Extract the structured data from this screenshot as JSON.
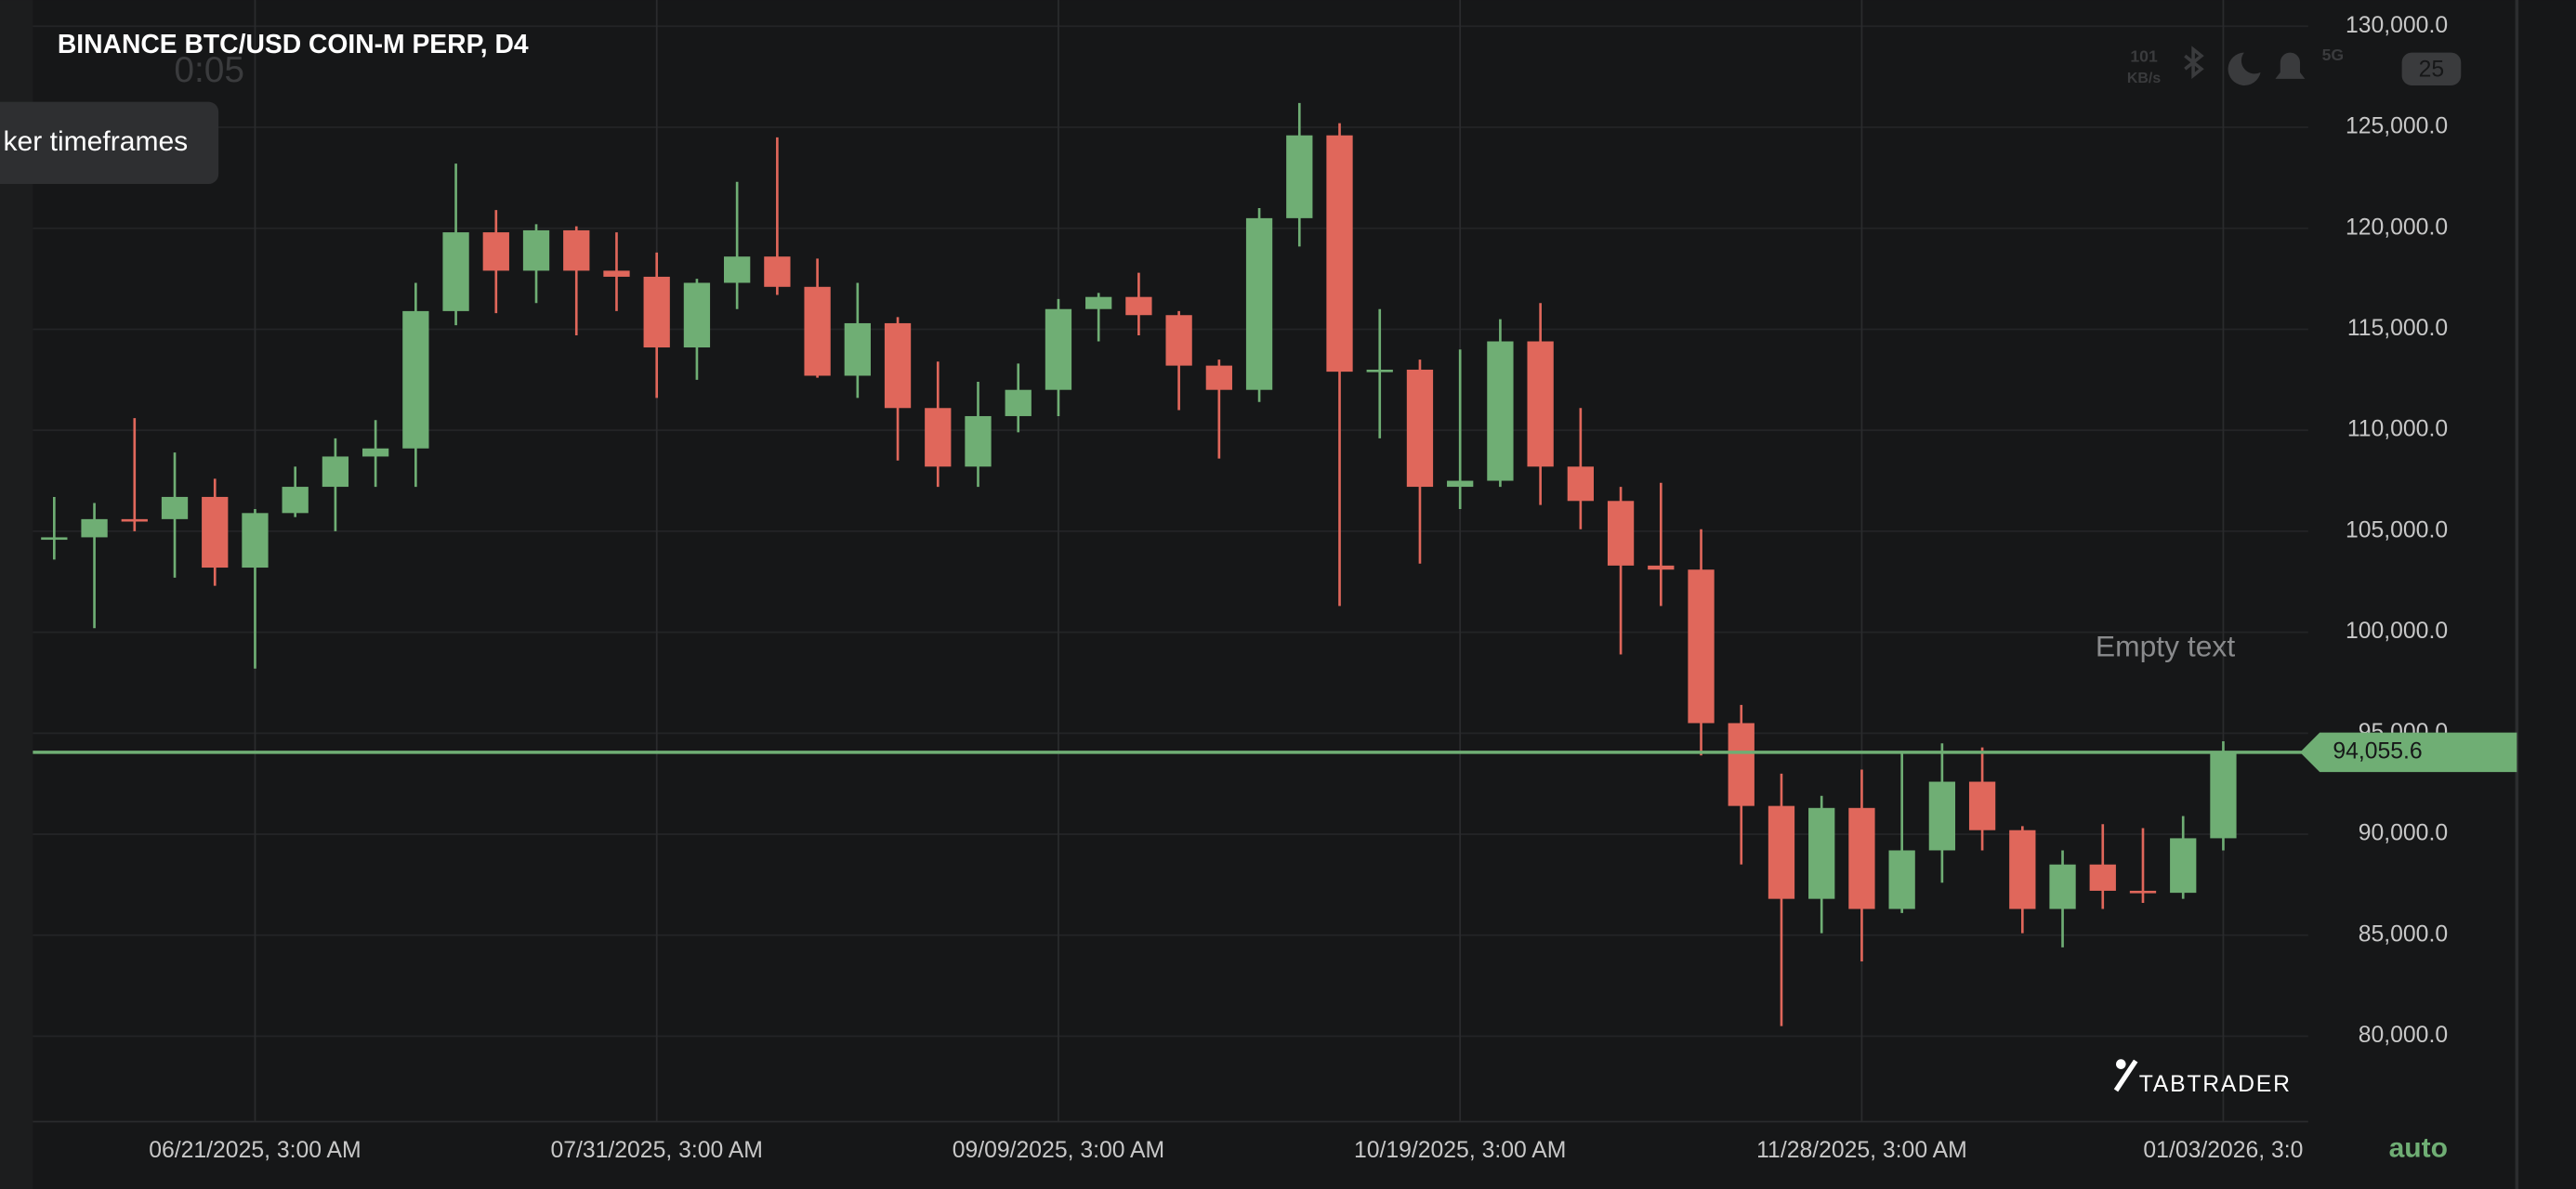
{
  "chart_data": {
    "type": "candlestick",
    "title": "BINANCE  BTC/USD COIN-M PERP, D4",
    "overlay_time": "0:05",
    "tooltip": "ker timeframes",
    "annotation": "Empty text",
    "scale_mode": "auto",
    "logo": "TABTRADER",
    "status_bar": {
      "speed": "101",
      "speed_unit": "KB/s",
      "network": "5G",
      "battery": "25"
    },
    "categories": [
      null,
      null,
      null,
      null,
      null,
      "06/21/2025, 3:00 AM",
      null,
      null,
      null,
      null,
      null,
      null,
      null,
      null,
      null,
      "07/31/2025, 3:00 AM",
      null,
      null,
      null,
      null,
      null,
      null,
      null,
      null,
      null,
      "09/09/2025, 3:00 AM",
      null,
      null,
      null,
      null,
      null,
      null,
      null,
      null,
      null,
      "10/19/2025, 3:00 AM",
      null,
      null,
      null,
      null,
      null,
      null,
      null,
      null,
      null,
      "11/28/2025, 3:00 AM",
      null,
      null,
      null,
      null,
      null,
      null,
      null,
      null,
      "01/03/2026, 3:0"
    ],
    "open": [
      104600,
      104700,
      105600,
      105600,
      106700,
      103200,
      105900,
      107200,
      108700,
      109100,
      115900,
      119800,
      117900,
      119900,
      117900,
      117600,
      114100,
      117300,
      118600,
      117100,
      112700,
      115300,
      111100,
      108200,
      110700,
      112000,
      116000,
      116600,
      115700,
      113200,
      112000,
      120500,
      124600,
      112900,
      113000,
      107200,
      107500,
      114400,
      108200,
      106500,
      103300,
      103100,
      95500,
      91400,
      86800,
      91300,
      86300,
      89200,
      92600,
      90200,
      86300,
      88500,
      87200,
      87100,
      89800
    ],
    "high": [
      106700,
      106400,
      110600,
      108900,
      107600,
      106100,
      108200,
      109600,
      110500,
      117300,
      123200,
      120900,
      120200,
      120100,
      119800,
      118800,
      117500,
      122300,
      124500,
      118500,
      117300,
      115600,
      113400,
      112400,
      113300,
      116500,
      116800,
      117800,
      115900,
      113500,
      121000,
      126200,
      125200,
      116000,
      113500,
      114000,
      115500,
      116300,
      111100,
      107200,
      107400,
      105100,
      96400,
      93000,
      91900,
      93200,
      94000,
      94500,
      94300,
      90400,
      89200,
      90500,
      90300,
      90900,
      94600
    ],
    "low": [
      103600,
      100200,
      105000,
      102700,
      102300,
      98200,
      105700,
      105000,
      107200,
      107200,
      115200,
      115800,
      116300,
      114700,
      115900,
      111600,
      112500,
      116000,
      116700,
      112600,
      111600,
      108500,
      107200,
      107200,
      109900,
      110700,
      114400,
      114700,
      111000,
      108600,
      111400,
      119100,
      101300,
      109600,
      103400,
      106100,
      107200,
      106300,
      105100,
      98900,
      101300,
      93900,
      88500,
      80500,
      85100,
      83700,
      86100,
      87600,
      89200,
      85100,
      84400,
      86300,
      86600,
      86800,
      89200
    ],
    "close": [
      104700,
      105600,
      105500,
      106700,
      103200,
      105900,
      107200,
      108700,
      109100,
      115900,
      119800,
      117900,
      119900,
      117900,
      117600,
      114100,
      117300,
      118600,
      117100,
      112700,
      115300,
      111100,
      108200,
      110700,
      112000,
      116000,
      116600,
      115700,
      113200,
      112000,
      120500,
      124600,
      112900,
      113000,
      107200,
      107500,
      114400,
      108200,
      106500,
      103300,
      103100,
      95500,
      91400,
      86800,
      91300,
      86300,
      89200,
      92600,
      90200,
      86300,
      88500,
      87200,
      87100,
      89800,
      94055.6
    ],
    "up_color": "#6fae74",
    "down_color": "#e0675b",
    "last_price": {
      "value": 94055.6,
      "label": "94,055.6"
    },
    "ylim": [
      75770,
      131300
    ],
    "yticks": [
      {
        "value": 80000,
        "label": "80,000.0"
      },
      {
        "value": 85000,
        "label": "85,000.0"
      },
      {
        "value": 90000,
        "label": "90,000.0"
      },
      {
        "value": 95000,
        "label": "95,000.0"
      },
      {
        "value": 100000,
        "label": "100,000.0"
      },
      {
        "value": 105000,
        "label": "105,000.0"
      },
      {
        "value": 110000,
        "label": "110,000.0"
      },
      {
        "value": 115000,
        "label": "115,000.0"
      },
      {
        "value": 120000,
        "label": "120,000.0"
      },
      {
        "value": 125000,
        "label": "125,000.0"
      },
      {
        "value": 130000,
        "label": "130,000.0"
      }
    ],
    "grid": true
  }
}
